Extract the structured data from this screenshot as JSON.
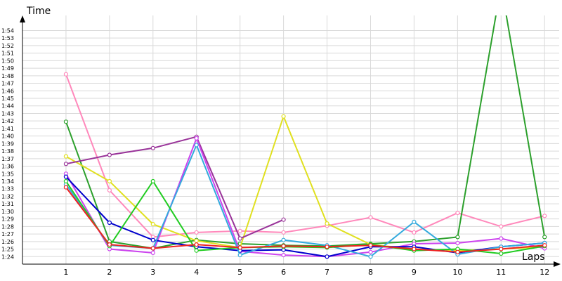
{
  "chart_data": {
    "type": "line",
    "title": "",
    "xlabel": "Laps",
    "ylabel": "Time",
    "x": [
      1,
      2,
      3,
      4,
      5,
      6,
      7,
      8,
      9,
      10,
      11,
      12
    ],
    "xlim": [
      0,
      12.4
    ],
    "ylim": [
      83,
      116
    ],
    "y_tick_values": [
      84,
      85,
      86,
      87,
      88,
      89,
      90,
      91,
      92,
      93,
      94,
      95,
      96,
      97,
      98,
      99,
      100,
      101,
      102,
      103,
      104,
      105,
      106,
      107,
      108,
      109,
      110,
      111,
      112,
      113,
      114
    ],
    "y_tick_labels": [
      "1:24",
      "1:25",
      "1:26",
      "1:27",
      "1:28",
      "1:29",
      "1:30",
      "1:31",
      "1:32",
      "1:33",
      "1:34",
      "1:35",
      "1:36",
      "1:37",
      "1:38",
      "1:39",
      "1:40",
      "1:41",
      "1:42",
      "1:43",
      "1:44",
      "1:45",
      "1:46",
      "1:47",
      "1:48",
      "1:49",
      "1:50",
      "1:51",
      "1:52",
      "1:53",
      "1:54"
    ],
    "x_tick_labels": [
      "1",
      "2",
      "3",
      "4",
      "5",
      "6",
      "7",
      "8",
      "9",
      "10",
      "11",
      "12"
    ],
    "grid": true,
    "legend": "none",
    "series": [
      {
        "color": "#ff88bb",
        "values": [
          108.2,
          92.8,
          86.6,
          87.2,
          87.4,
          87.2,
          88.1,
          89.2,
          87.2,
          89.8,
          88.0,
          89.4
        ]
      },
      {
        "color": "#2ca02c",
        "values": [
          101.9,
          86.0,
          85.1,
          86.2,
          85.7,
          85.5,
          85.4,
          85.7,
          86.0,
          86.6,
          120.0,
          86.6
        ]
      },
      {
        "color": "#e0e020",
        "values": [
          97.3,
          94.0,
          88.3,
          86.1,
          85.2,
          102.6,
          88.4,
          85.6,
          85.0,
          84.8,
          85.0,
          85.3
        ]
      },
      {
        "color": "#993399",
        "values": [
          96.3,
          97.5,
          98.4,
          99.9,
          86.4,
          88.9,
          null,
          null,
          null,
          null,
          null,
          null
        ]
      },
      {
        "color": "#cc44ee",
        "values": [
          95.0,
          85.0,
          84.5,
          99.7,
          84.7,
          84.2,
          84.0,
          84.6,
          85.7,
          85.8,
          86.4,
          85.1
        ]
      },
      {
        "color": "#0000cc",
        "values": [
          94.6,
          88.5,
          86.2,
          85.3,
          84.8,
          84.9,
          84.0,
          85.3,
          85.3,
          84.5,
          85.3,
          85.8
        ]
      },
      {
        "color": "#33aadd",
        "values": [
          93.6,
          85.5,
          85.1,
          98.8,
          84.2,
          86.2,
          85.5,
          84.0,
          88.6,
          84.3,
          85.3,
          85.8
        ]
      },
      {
        "color": "#22cc22",
        "values": [
          94.0,
          85.4,
          94.0,
          84.8,
          85.2,
          85.3,
          85.2,
          85.6,
          84.8,
          85.0,
          84.4,
          85.4
        ]
      },
      {
        "color": "#ee2222",
        "values": [
          93.2,
          85.6,
          85.1,
          85.6,
          85.2,
          85.4,
          85.3,
          85.5,
          85.0,
          84.6,
          85.0,
          85.5
        ]
      }
    ]
  }
}
